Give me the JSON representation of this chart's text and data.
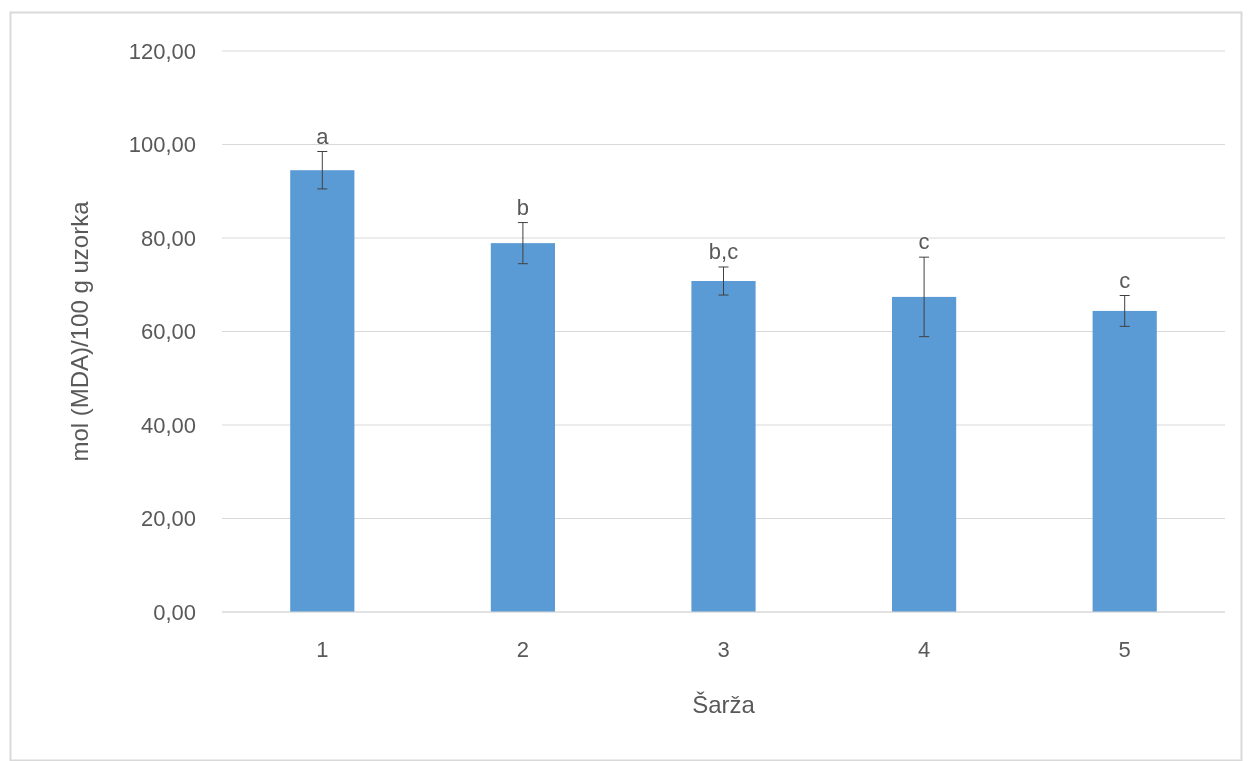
{
  "chart_data": {
    "type": "bar",
    "xlabel": "Šarža",
    "ylabel": "mol (MDA)/100 g uzorka",
    "categories": [
      "1",
      "2",
      "3",
      "4",
      "5"
    ],
    "values": [
      94.5,
      78.9,
      70.8,
      67.4,
      64.4
    ],
    "errors": [
      4,
      4.4,
      3,
      8.5,
      3.3
    ],
    "color": "#5b9bd5",
    "ylim": [
      0,
      120
    ],
    "yticks": [
      {
        "value": 0,
        "label": "0,00"
      },
      {
        "value": 20,
        "label": "20,00"
      },
      {
        "value": 40,
        "label": "40,00"
      },
      {
        "value": 60,
        "label": "60,00"
      },
      {
        "value": 80,
        "label": "80,00"
      },
      {
        "value": 100,
        "label": "100,00"
      },
      {
        "value": 120,
        "label": "120,00"
      }
    ],
    "grid": "y",
    "annotations": [
      {
        "text": "a",
        "x": "1",
        "y": 98.5
      },
      {
        "text": "b",
        "x": "2",
        "y": 83.3
      },
      {
        "text": "b,c",
        "x": "3",
        "y": 73.8
      },
      {
        "text": "c",
        "x": "4",
        "y": 75.9
      },
      {
        "text": "c",
        "x": "5",
        "y": 67.7
      }
    ]
  }
}
